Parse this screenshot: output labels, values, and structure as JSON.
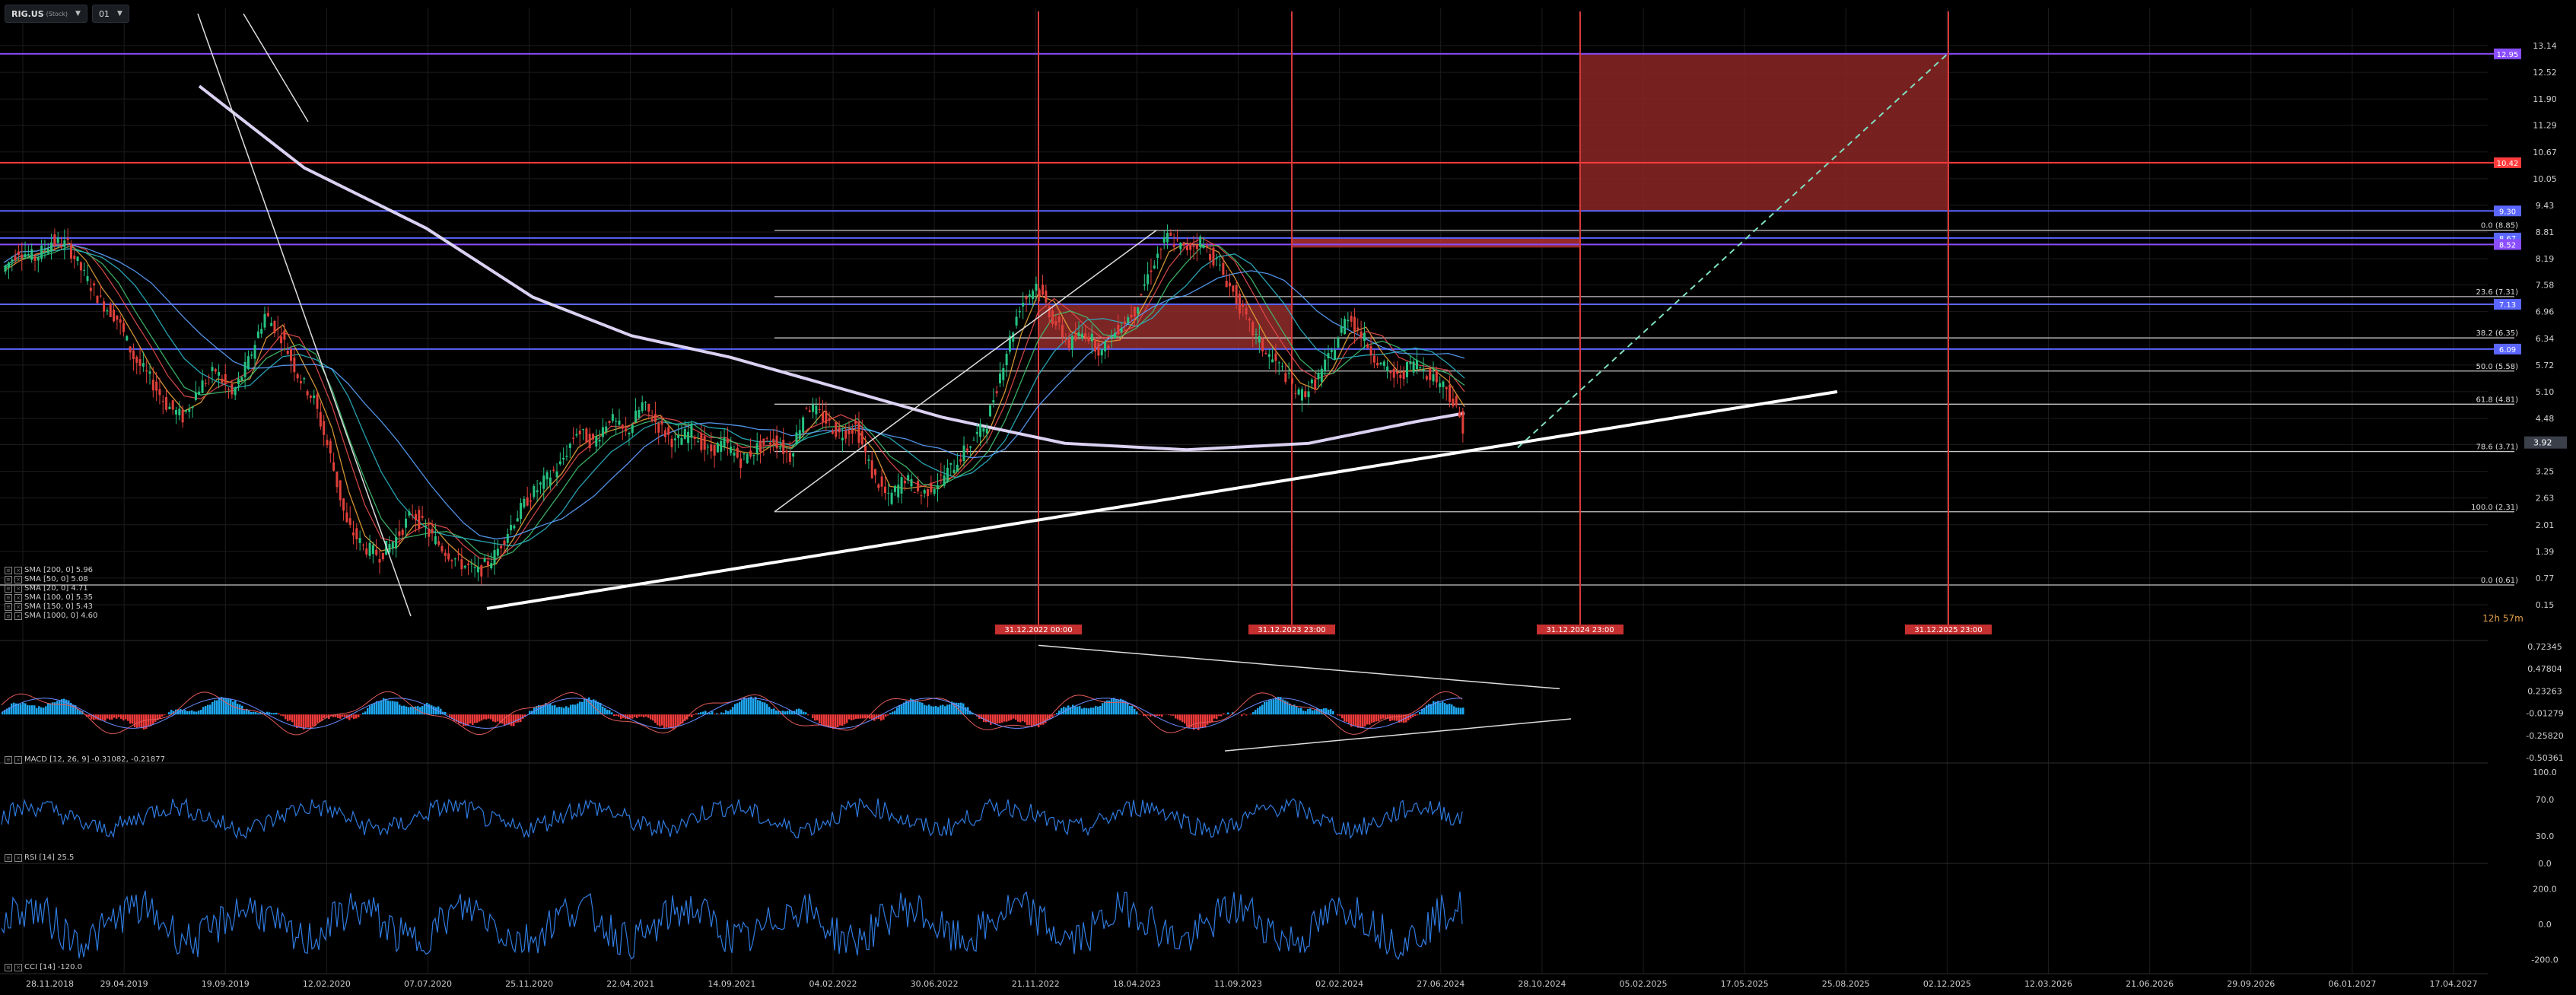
{
  "header": {
    "symbol": "RIG.US",
    "symbol_sub": "(Stock)",
    "interval": "01"
  },
  "colors": {
    "background": "#000000",
    "grid": "#1c1c1c",
    "purple_level": "#8a4dff",
    "red_level": "#ff3b3b",
    "blue_level": "#5a66ff",
    "fib_level": "#dcdcdc",
    "red_zone": "#8b2626",
    "macd_pos": "#1ea7f0",
    "macd_neg": "#ee3a3a",
    "osc_line": "#2f7be0",
    "price_tag": "#3a3f4a"
  },
  "indicators_legend": [
    {
      "label": "SMA [200, 0] 5.96"
    },
    {
      "label": "SMA [50, 0] 5.08"
    },
    {
      "label": "SMA [20, 0] 4.71"
    },
    {
      "label": "SMA [100, 0] 5.35"
    },
    {
      "label": "SMA [150, 0] 5.43"
    },
    {
      "label": "SMA [1000, 0] 4.60"
    }
  ],
  "macd_label": "MACD [12, 26, 9] -0.31082, -0.21877",
  "rsi_label": "RSI [14] 25.5",
  "cci_label": "CCI [14] -120.0",
  "countdown": "12h 57m",
  "current_price": "3.92",
  "chart_data": {
    "type": "candlestick",
    "x_ticks": [
      "28.11.2018",
      "29.04.2019",
      "19.09.2019",
      "12.02.2020",
      "07.07.2020",
      "25.11.2020",
      "22.04.2021",
      "14.09.2021",
      "04.02.2022",
      "30.06.2022",
      "21.11.2022",
      "18.04.2023",
      "11.09.2023",
      "02.02.2024",
      "27.06.2024",
      "28.10.2024",
      "05.02.2025",
      "17.05.2025",
      "25.08.2025",
      "02.12.2025",
      "12.03.2026",
      "21.06.2026",
      "29.09.2026",
      "06.01.2027",
      "17.04.2027"
    ],
    "price_axis_ticks": [
      "13.14",
      "12.52",
      "11.90",
      "11.29",
      "10.67",
      "10.05",
      "9.43",
      "8.81",
      "8.19",
      "7.58",
      "6.96",
      "6.34",
      "5.72",
      "5.10",
      "4.48",
      "3.87",
      "3.25",
      "2.63",
      "2.01",
      "1.39",
      "0.77",
      "0.15"
    ],
    "price_ylim": [
      0.15,
      13.14
    ],
    "horizontal_levels": [
      {
        "value": 12.95,
        "label": "12.95",
        "type": "purple"
      },
      {
        "value": 10.42,
        "label": "10.42",
        "type": "red"
      },
      {
        "value": 9.3,
        "label": "9.30",
        "type": "blue"
      },
      {
        "value": 8.67,
        "label": "8.67",
        "type": "blue"
      },
      {
        "value": 8.52,
        "label": "8.52",
        "type": "purple"
      },
      {
        "value": 7.13,
        "label": "7.13",
        "type": "blue"
      },
      {
        "value": 6.09,
        "label": "6.09",
        "type": "blue"
      }
    ],
    "fib_levels": [
      {
        "value": 8.85,
        "label": "0.0 (8.85)"
      },
      {
        "value": 7.31,
        "label": "23.6 (7.31)"
      },
      {
        "value": 6.35,
        "label": "38.2 (6.35)"
      },
      {
        "value": 5.58,
        "label": "50.0 (5.58)"
      },
      {
        "value": 4.81,
        "label": "61.8 (4.81)"
      },
      {
        "value": 3.71,
        "label": "78.6 (3.71)"
      },
      {
        "value": 2.31,
        "label": "100.0 (2.31)"
      },
      {
        "value": 0.61,
        "label": "0.0 (0.61)"
      }
    ],
    "vertical_markers": [
      {
        "label": "31.12.2022 00:00"
      },
      {
        "label": "31.12.2023 23:00"
      },
      {
        "label": "31.12.2024 23:00"
      },
      {
        "label": "31.12.2025 23:00"
      }
    ],
    "macd_axis_ticks": [
      "0.72345",
      "0.47804",
      "0.23263",
      "-0.01279",
      "-0.25820",
      "-0.50361"
    ],
    "rsi_axis_ticks": [
      "100.0",
      "70.0",
      "30.0",
      "0.0"
    ],
    "cci_axis_ticks": [
      "200.0",
      "0.0",
      "-200.0"
    ],
    "price_path": [
      [
        0,
        7.9
      ],
      [
        1,
        8.4
      ],
      [
        2,
        8.2
      ],
      [
        3,
        8.6
      ],
      [
        4,
        8.5
      ],
      [
        5,
        7.8
      ],
      [
        6,
        7.2
      ],
      [
        7,
        6.8
      ],
      [
        8,
        5.9
      ],
      [
        9,
        5.4
      ],
      [
        10,
        4.8
      ],
      [
        11,
        4.5
      ],
      [
        12,
        5.2
      ],
      [
        13,
        5.6
      ],
      [
        14,
        5.0
      ],
      [
        15,
        5.8
      ],
      [
        16,
        6.9
      ],
      [
        17,
        6.4
      ],
      [
        18,
        5.5
      ],
      [
        19,
        4.9
      ],
      [
        20,
        3.6
      ],
      [
        21,
        2.0
      ],
      [
        22,
        1.5
      ],
      [
        23,
        1.3
      ],
      [
        24,
        1.7
      ],
      [
        25,
        2.3
      ],
      [
        26,
        1.8
      ],
      [
        27,
        1.4
      ],
      [
        28,
        1.1
      ],
      [
        29,
        0.9
      ],
      [
        30,
        1.3
      ],
      [
        31,
        2.0
      ],
      [
        32,
        2.6
      ],
      [
        33,
        3.0
      ],
      [
        34,
        3.4
      ],
      [
        35,
        4.2
      ],
      [
        36,
        3.9
      ],
      [
        37,
        4.5
      ],
      [
        38,
        4.1
      ],
      [
        39,
        4.8
      ],
      [
        40,
        4.3
      ],
      [
        41,
        3.9
      ],
      [
        42,
        4.2
      ],
      [
        43,
        3.7
      ],
      [
        44,
        3.9
      ],
      [
        45,
        3.5
      ],
      [
        46,
        3.8
      ],
      [
        47,
        4.0
      ],
      [
        48,
        3.6
      ],
      [
        49,
        4.8
      ],
      [
        50,
        4.5
      ],
      [
        51,
        4.1
      ],
      [
        52,
        4.3
      ],
      [
        53,
        3.2
      ],
      [
        54,
        2.6
      ],
      [
        55,
        3.1
      ],
      [
        56,
        2.7
      ],
      [
        57,
        3.0
      ],
      [
        58,
        3.4
      ],
      [
        59,
        3.9
      ],
      [
        60,
        4.4
      ],
      [
        61,
        5.8
      ],
      [
        62,
        7.1
      ],
      [
        63,
        7.6
      ],
      [
        64,
        6.8
      ],
      [
        65,
        6.2
      ],
      [
        66,
        6.5
      ],
      [
        67,
        6.0
      ],
      [
        68,
        6.6
      ],
      [
        69,
        7.0
      ],
      [
        70,
        8.0
      ],
      [
        71,
        8.7
      ],
      [
        72,
        8.4
      ],
      [
        73,
        8.6
      ],
      [
        74,
        8.1
      ],
      [
        75,
        7.4
      ],
      [
        76,
        6.6
      ],
      [
        77,
        6.0
      ],
      [
        78,
        5.6
      ],
      [
        79,
        5.0
      ],
      [
        80,
        5.3
      ],
      [
        81,
        6.0
      ],
      [
        82,
        6.9
      ],
      [
        83,
        6.3
      ],
      [
        84,
        5.7
      ],
      [
        85,
        5.4
      ],
      [
        86,
        5.8
      ],
      [
        87,
        5.5
      ],
      [
        88,
        5.2
      ],
      [
        89,
        4.3
      ]
    ]
  }
}
